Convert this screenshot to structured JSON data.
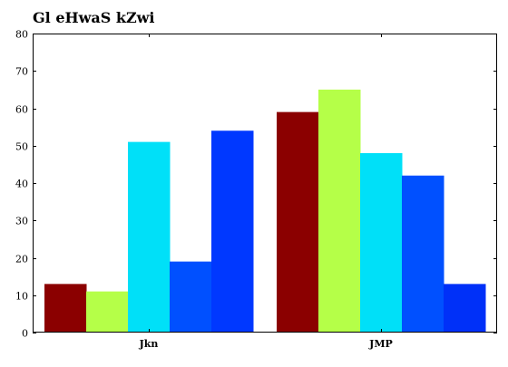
{
  "chart_data": {
    "type": "bar",
    "title": "Gl eHwaS kZwi",
    "xlabel": "",
    "ylabel": "",
    "categories": [
      "Jkn",
      "JMP"
    ],
    "series": [
      {
        "values": [
          13,
          59
        ],
        "colors": [
          "#8b0000",
          "#8b0000"
        ]
      },
      {
        "values": [
          11,
          65
        ],
        "colors": [
          "#b5ff48",
          "#b5ff48"
        ]
      },
      {
        "values": [
          51,
          48
        ],
        "colors": [
          "#00e0f8",
          "#00e0f8"
        ]
      },
      {
        "values": [
          19,
          42
        ],
        "colors": [
          "#0050ff",
          "#0050ff"
        ]
      },
      {
        "values": [
          54,
          13
        ],
        "colors": [
          "#0038ff",
          "#0030f8"
        ]
      }
    ],
    "ylim": [
      0,
      80
    ],
    "yticks": [
      0,
      10,
      20,
      30,
      40,
      50,
      60,
      70,
      80
    ],
    "grid": false,
    "legend": "none"
  }
}
